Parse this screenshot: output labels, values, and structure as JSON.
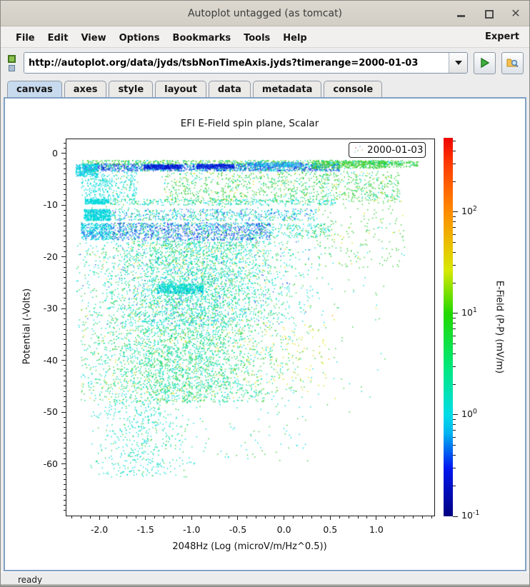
{
  "window": {
    "title": "Autoplot untagged (as tomcat)"
  },
  "menu": {
    "items": [
      "File",
      "Edit",
      "View",
      "Options",
      "Bookmarks",
      "Tools",
      "Help"
    ],
    "right": "Expert"
  },
  "urlbar": {
    "value": "http://autoplot.org/data/jyds/tsbNonTimeAxis.jyds?timerange=2000-01-03"
  },
  "tabs": {
    "items": [
      "canvas",
      "axes",
      "style",
      "layout",
      "data",
      "metadata",
      "console"
    ],
    "selected": "canvas"
  },
  "statusbar": {
    "text": "ready"
  },
  "chart_data": {
    "type": "scatter",
    "title": "EFI  E-Field spin plane, Scalar",
    "xlabel": "2048Hz (Log (microV/m/Hz^0.5))",
    "ylabel": "Potential (-Volts)",
    "colorbar_label": "E-Field (P-P) (mV/m)",
    "legend": "2000-01-03",
    "xlim": [
      -2.356,
      1.627
    ],
    "ylim": [
      -70.0,
      2.76
    ],
    "zlim": [
      0.1,
      540
    ],
    "x_ticks": [
      {
        "v": -2.0,
        "label": "-2.0"
      },
      {
        "v": -1.5,
        "label": "-1.5"
      },
      {
        "v": -1.0,
        "label": "-1.0"
      },
      {
        "v": -0.5,
        "label": "-0.5"
      },
      {
        "v": 0.0,
        "label": "0.0"
      },
      {
        "v": 0.5,
        "label": "0.5"
      },
      {
        "v": 1.0,
        "label": "1.0"
      }
    ],
    "x_minor_step": 0.1,
    "y_ticks": [
      {
        "v": 0,
        "label": "0"
      },
      {
        "v": -10,
        "label": "-10"
      },
      {
        "v": -20,
        "label": "-20"
      },
      {
        "v": -30,
        "label": "-30"
      },
      {
        "v": -40,
        "label": "-40"
      },
      {
        "v": -50,
        "label": "-50"
      },
      {
        "v": -60,
        "label": "-60"
      }
    ],
    "y_minor_step": 1,
    "colorbar_tick_exponents": [
      2,
      1,
      0,
      -1
    ],
    "grid": false,
    "legend_position": "top-right",
    "legend_icon_colors": [
      "#e9b9c9",
      "#bcd8ee",
      "#bfe3bb",
      "#ddd6ae",
      "#cfe0f0"
    ],
    "palette": {
      "darkblue": "#0011cc",
      "blue": "#2255ee",
      "lightblue": "#33a3f2",
      "cyan": "#00d8dc",
      "spring": "#00dc96",
      "green": "#2ecc33",
      "ygreen": "#99d322",
      "yellow": "#e2dd00",
      "orange": "#ffa200"
    },
    "point_size": 1.4,
    "seed": 42,
    "bands": [
      {
        "name": "top-green-fringe",
        "n": 650,
        "x": [
          -2.2,
          1.3
        ],
        "y": [
          -1.2,
          -2.1
        ],
        "c": {
          "green": 70,
          "ygreen": 10,
          "cyan": 20
        }
      },
      {
        "name": "top-blue-band",
        "n": 1500,
        "x": [
          -2.18,
          0.6
        ],
        "y": [
          -1.9,
          -3.3
        ],
        "c": {
          "blue": 38,
          "cyan": 30,
          "darkblue": 20,
          "green": 12
        }
      },
      {
        "name": "darkblue-blob-1",
        "n": 420,
        "x": [
          -1.52,
          -1.12
        ],
        "y": [
          -2.1,
          -2.9
        ],
        "c": {
          "darkblue": 70,
          "blue": 30
        }
      },
      {
        "name": "darkblue-blob-2",
        "n": 380,
        "x": [
          -0.95,
          -0.55
        ],
        "y": [
          -2.0,
          -2.8
        ],
        "c": {
          "darkblue": 65,
          "blue": 35
        }
      },
      {
        "name": "lightblue-streak",
        "n": 260,
        "x": [
          -0.4,
          0.18
        ],
        "y": [
          -1.6,
          -2.5
        ],
        "c": {
          "lightblue": 55,
          "blue": 20,
          "cyan": 25
        }
      },
      {
        "name": "top-right-green",
        "n": 420,
        "x": [
          0.3,
          1.1
        ],
        "y": [
          -1.3,
          -2.8
        ],
        "c": {
          "green": 80,
          "cyan": 10,
          "ygreen": 10
        }
      },
      {
        "name": "top-right-green-tail",
        "n": 120,
        "x": [
          1.0,
          1.45
        ],
        "y": [
          -1.4,
          -2.6
        ],
        "c": {
          "green": 90,
          "cyan": 10
        }
      },
      {
        "name": "left-ear",
        "n": 300,
        "x": [
          -2.26,
          -2.02
        ],
        "y": [
          -2.0,
          -4.3
        ],
        "c": {
          "cyan": 85,
          "lightblue": 15
        }
      },
      {
        "name": "left-dribble",
        "n": 130,
        "x": [
          -2.2,
          -1.9
        ],
        "y": [
          -4.3,
          -8.6
        ],
        "c": {
          "cyan": 100
        }
      },
      {
        "name": "wisp",
        "n": 180,
        "x": [
          -2.0,
          -1.6
        ],
        "y": [
          -3.4,
          -8.8
        ],
        "c": {
          "cyan": 90,
          "green": 10
        }
      },
      {
        "name": "mid-green-sparse",
        "n": 950,
        "x": [
          -1.3,
          1.25
        ],
        "y": [
          -3.4,
          -9.3
        ],
        "c": {
          "green": 68,
          "spring": 15,
          "cyan": 10,
          "yellow": 7
        }
      },
      {
        "name": "left-blob-9v",
        "n": 240,
        "x": [
          -2.16,
          -1.9
        ],
        "y": [
          -8.7,
          -9.7
        ],
        "c": {
          "cyan": 100
        }
      },
      {
        "name": "band-9v",
        "n": 330,
        "x": [
          -1.9,
          0.55
        ],
        "y": [
          -8.7,
          -9.9
        ],
        "c": {
          "cyan": 70,
          "green": 30
        }
      },
      {
        "name": "left-blob-11v",
        "n": 520,
        "x": [
          -2.17,
          -1.88
        ],
        "y": [
          -10.7,
          -12.9
        ],
        "c": {
          "cyan": 95,
          "lightblue": 5
        }
      },
      {
        "name": "band-11v",
        "n": 600,
        "x": [
          -1.88,
          0.35
        ],
        "y": [
          -10.6,
          -12.9
        ],
        "c": {
          "cyan": 60,
          "blue": 20,
          "green": 20
        }
      },
      {
        "name": "left-blob-14v",
        "n": 380,
        "x": [
          -2.2,
          -1.88
        ],
        "y": [
          -13.4,
          -16.6
        ],
        "c": {
          "cyan": 80,
          "blue": 20
        }
      },
      {
        "name": "band-14v-blue",
        "n": 1250,
        "x": [
          -1.88,
          -0.15
        ],
        "y": [
          -13.3,
          -16.7
        ],
        "c": {
          "blue": 45,
          "cyan": 35,
          "darkblue": 8,
          "green": 12
        }
      },
      {
        "name": "band-14v-ext",
        "n": 170,
        "x": [
          -0.15,
          0.5
        ],
        "y": [
          -13.5,
          -16.3
        ],
        "c": {
          "cyan": 60,
          "green": 40
        }
      },
      {
        "name": "mid-cloud",
        "n": 3500,
        "gx": [
          -1.0,
          0.55
        ],
        "xr": [
          -2.25,
          0.6
        ],
        "y": [
          -16.8,
          -33.5
        ],
        "c": {
          "cyan": 42,
          "spring": 30,
          "green": 20,
          "blue": 4,
          "yellow": 4
        }
      },
      {
        "name": "dense-blob-26v",
        "n": 520,
        "x": [
          -1.38,
          -0.88
        ],
        "y": [
          -25.1,
          -27.0
        ],
        "c": {
          "cyan": 80,
          "spring": 15,
          "blue": 5
        }
      },
      {
        "name": "right-green-column",
        "n": 240,
        "x": [
          0.35,
          1.3
        ],
        "y": [
          -4,
          -22
        ],
        "c": {
          "green": 78,
          "yellow": 12,
          "cyan": 10
        }
      },
      {
        "name": "lower-cloud",
        "n": 2400,
        "gx": [
          -1.15,
          0.55
        ],
        "xr": [
          -2.2,
          0.4
        ],
        "y": [
          -33.5,
          -48
        ],
        "c": {
          "spring": 40,
          "green": 30,
          "cyan": 25,
          "yellow": 5
        }
      },
      {
        "name": "yellow-fringe",
        "n": 130,
        "x": [
          -0.45,
          0.45
        ],
        "y": [
          -33,
          -46
        ],
        "c": {
          "yellow": 60,
          "ygreen": 20,
          "green": 20
        }
      },
      {
        "name": "bottom-tail",
        "n": 480,
        "gx": [
          -1.55,
          0.28
        ],
        "xr": [
          -2.1,
          -0.85
        ],
        "y": [
          -48,
          -62.5
        ],
        "c": {
          "cyan": 60,
          "spring": 30,
          "green": 10
        }
      },
      {
        "name": "bottom-sparse",
        "n": 90,
        "x": [
          -1.1,
          0.25
        ],
        "y": [
          -45,
          -60
        ],
        "c": {
          "cyan": 50,
          "green": 50
        }
      },
      {
        "name": "general-speckle",
        "n": 320,
        "x": [
          -2.2,
          1.1
        ],
        "y": [
          -2,
          -50
        ],
        "c": {
          "green": 50,
          "cyan": 28,
          "spring": 15,
          "yellow": 5,
          "orange": 2
        }
      }
    ]
  }
}
